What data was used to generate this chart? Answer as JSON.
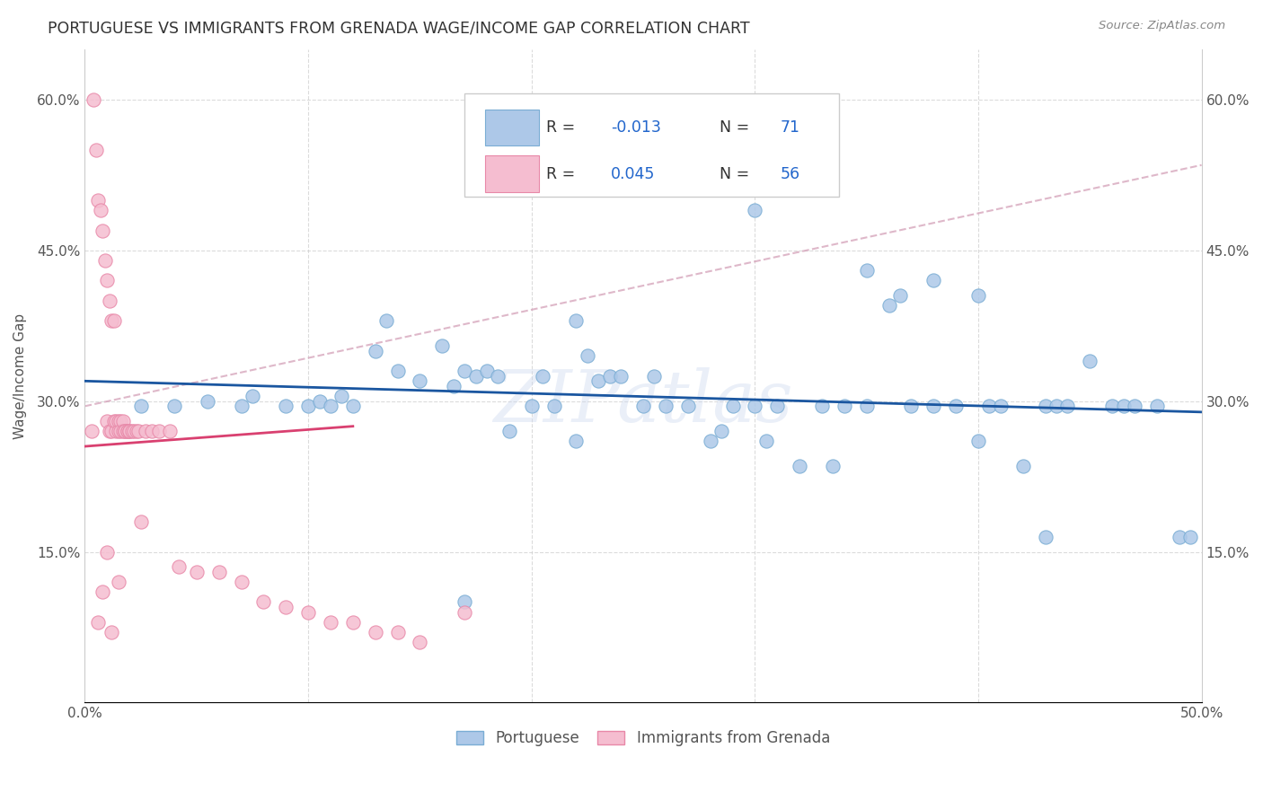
{
  "title": "PORTUGUESE VS IMMIGRANTS FROM GRENADA WAGE/INCOME GAP CORRELATION CHART",
  "source": "Source: ZipAtlas.com",
  "ylabel": "Wage/Income Gap",
  "xlim": [
    0.0,
    0.5
  ],
  "ylim": [
    0.0,
    0.65
  ],
  "xticks": [
    0.0,
    0.1,
    0.2,
    0.3,
    0.4,
    0.5
  ],
  "xticklabels": [
    "0.0%",
    "",
    "",
    "",
    "",
    "50.0%"
  ],
  "yticks": [
    0.0,
    0.15,
    0.3,
    0.45,
    0.6
  ],
  "yticklabels": [
    "",
    "15.0%",
    "30.0%",
    "45.0%",
    "60.0%"
  ],
  "right_yticklabels": [
    "15.0%",
    "30.0%",
    "45.0%",
    "60.0%"
  ],
  "blue_color": "#adc8e8",
  "blue_edge": "#7aadd4",
  "blue_line_color": "#1a56a0",
  "pink_color": "#f5bdd0",
  "pink_edge": "#e888a8",
  "pink_line_color": "#d94070",
  "dashed_color": "#d4a0b8",
  "watermark": "ZIPatlas",
  "grid_color": "#cccccc",
  "bg_color": "#ffffff",
  "title_color": "#333333",
  "source_color": "#888888",
  "tick_color": "#555555",
  "ylabel_color": "#555555",
  "blue_R": "-0.013",
  "blue_N": "71",
  "pink_R": "0.045",
  "pink_N": "56",
  "legend_R_color": "#333333",
  "legend_val_color": "#2266cc",
  "blue_x": [
    0.025,
    0.04,
    0.055,
    0.07,
    0.075,
    0.09,
    0.1,
    0.105,
    0.11,
    0.115,
    0.12,
    0.13,
    0.135,
    0.14,
    0.15,
    0.16,
    0.165,
    0.17,
    0.175,
    0.18,
    0.185,
    0.19,
    0.2,
    0.205,
    0.21,
    0.22,
    0.225,
    0.23,
    0.235,
    0.24,
    0.25,
    0.255,
    0.26,
    0.27,
    0.28,
    0.285,
    0.29,
    0.3,
    0.305,
    0.31,
    0.32,
    0.33,
    0.335,
    0.34,
    0.35,
    0.36,
    0.365,
    0.37,
    0.38,
    0.39,
    0.4,
    0.405,
    0.41,
    0.42,
    0.43,
    0.435,
    0.44,
    0.45,
    0.46,
    0.465,
    0.47,
    0.48,
    0.49,
    0.3,
    0.35,
    0.4,
    0.22,
    0.17,
    0.38,
    0.43,
    0.495
  ],
  "blue_y": [
    0.295,
    0.295,
    0.3,
    0.295,
    0.305,
    0.295,
    0.295,
    0.3,
    0.295,
    0.305,
    0.295,
    0.35,
    0.38,
    0.33,
    0.32,
    0.355,
    0.315,
    0.33,
    0.325,
    0.33,
    0.325,
    0.27,
    0.295,
    0.325,
    0.295,
    0.38,
    0.345,
    0.32,
    0.325,
    0.325,
    0.295,
    0.325,
    0.295,
    0.295,
    0.26,
    0.27,
    0.295,
    0.295,
    0.26,
    0.295,
    0.235,
    0.295,
    0.235,
    0.295,
    0.43,
    0.395,
    0.405,
    0.295,
    0.295,
    0.295,
    0.405,
    0.295,
    0.295,
    0.235,
    0.295,
    0.295,
    0.295,
    0.34,
    0.295,
    0.295,
    0.295,
    0.295,
    0.165,
    0.49,
    0.295,
    0.26,
    0.26,
    0.1,
    0.42,
    0.165,
    0.165
  ],
  "pink_x": [
    0.003,
    0.004,
    0.005,
    0.006,
    0.007,
    0.008,
    0.009,
    0.01,
    0.01,
    0.011,
    0.011,
    0.012,
    0.012,
    0.013,
    0.013,
    0.014,
    0.014,
    0.015,
    0.015,
    0.016,
    0.016,
    0.017,
    0.017,
    0.018,
    0.018,
    0.019,
    0.019,
    0.02,
    0.02,
    0.021,
    0.022,
    0.023,
    0.024,
    0.025,
    0.027,
    0.03,
    0.033,
    0.038,
    0.042,
    0.05,
    0.06,
    0.07,
    0.08,
    0.09,
    0.1,
    0.11,
    0.12,
    0.13,
    0.14,
    0.15,
    0.17,
    0.01,
    0.015,
    0.008,
    0.012,
    0.006
  ],
  "pink_y": [
    0.27,
    0.6,
    0.55,
    0.5,
    0.49,
    0.47,
    0.44,
    0.28,
    0.42,
    0.27,
    0.4,
    0.27,
    0.38,
    0.28,
    0.38,
    0.27,
    0.28,
    0.28,
    0.27,
    0.28,
    0.27,
    0.28,
    0.27,
    0.27,
    0.27,
    0.27,
    0.27,
    0.27,
    0.27,
    0.27,
    0.27,
    0.27,
    0.27,
    0.18,
    0.27,
    0.27,
    0.27,
    0.27,
    0.135,
    0.13,
    0.13,
    0.12,
    0.1,
    0.095,
    0.09,
    0.08,
    0.08,
    0.07,
    0.07,
    0.06,
    0.09,
    0.15,
    0.12,
    0.11,
    0.07,
    0.08
  ]
}
